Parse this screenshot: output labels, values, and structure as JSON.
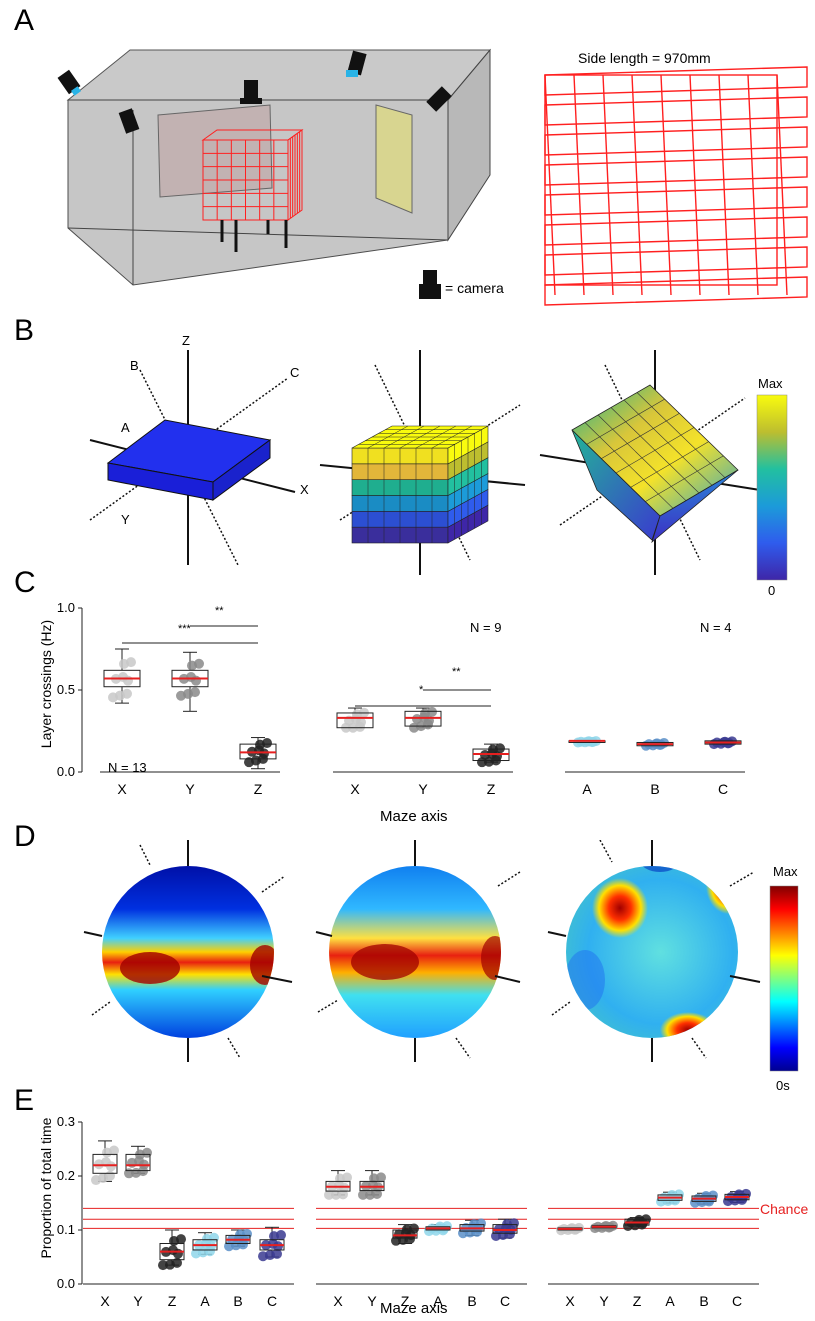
{
  "panels": {
    "a": {
      "letter": "A",
      "side_length_label": "Side length = 970mm",
      "camera_legend": "= camera"
    },
    "b": {
      "letter": "B",
      "axis_labels": {
        "z": "Z",
        "x": "X",
        "y": "Y",
        "a": "A",
        "b": "B",
        "c": "C"
      },
      "colorbar": {
        "max": "Max",
        "min": "0"
      }
    },
    "c": {
      "letter": "C",
      "ylabel": "Layer crossings (Hz)",
      "xlabel": "Maze axis",
      "n_labels": [
        "N = 13",
        "N = 9",
        "N = 4"
      ],
      "sig_labels": [
        "**",
        "***",
        "**",
        "*"
      ]
    },
    "d": {
      "letter": "D",
      "colorbar": {
        "max": "Max",
        "min": "0s"
      }
    },
    "e": {
      "letter": "E",
      "ylabel": "Proportion of total time",
      "xlabel": "Maze axis",
      "chance_label": "Chance"
    }
  },
  "chart_data": [
    {
      "type": "box",
      "panel": "C",
      "ylabel": "Layer crossings (Hz)",
      "xlabel": "Maze axis",
      "ylim": [
        0,
        1.0
      ],
      "yticks": [
        "0.0",
        "0.5",
        "1.0"
      ],
      "groups": [
        {
          "n": "N = 13",
          "categories": [
            "X",
            "Y",
            "Z"
          ],
          "median": [
            0.57,
            0.57,
            0.12
          ],
          "q1": [
            0.52,
            0.52,
            0.08
          ],
          "q3": [
            0.62,
            0.62,
            0.17
          ],
          "whisker_low": [
            0.42,
            0.37,
            0.02
          ],
          "whisker_high": [
            0.75,
            0.73,
            0.21
          ]
        },
        {
          "n": "N = 9",
          "categories": [
            "X",
            "Y",
            "Z"
          ],
          "median": [
            0.33,
            0.33,
            0.11
          ],
          "q1": [
            0.27,
            0.28,
            0.07
          ],
          "q3": [
            0.36,
            0.37,
            0.14
          ],
          "whisker_low": [
            0.27,
            0.27,
            0.06
          ],
          "whisker_high": [
            0.39,
            0.39,
            0.17
          ]
        },
        {
          "n": "N = 4",
          "categories": [
            "A",
            "B",
            "C"
          ],
          "median": [
            0.19,
            0.17,
            0.18
          ],
          "q1": [
            0.18,
            0.16,
            0.17
          ],
          "q3": [
            0.19,
            0.18,
            0.19
          ],
          "whisker_low": [
            0.18,
            0.16,
            0.17
          ],
          "whisker_high": [
            0.19,
            0.18,
            0.19
          ]
        }
      ]
    },
    {
      "type": "box",
      "panel": "E",
      "ylabel": "Proportion of total time",
      "xlabel": "Maze axis",
      "ylim": [
        0,
        0.3
      ],
      "yticks": [
        "0.0",
        "0.1",
        "0.2",
        "0.3"
      ],
      "chance": [
        0.103,
        0.12,
        0.14
      ],
      "groups": [
        {
          "categories": [
            "X",
            "Y",
            "Z",
            "A",
            "B",
            "C"
          ],
          "median": [
            0.22,
            0.22,
            0.06,
            0.072,
            0.082,
            0.072
          ],
          "q1": [
            0.205,
            0.21,
            0.045,
            0.063,
            0.075,
            0.063
          ],
          "q3": [
            0.24,
            0.24,
            0.075,
            0.082,
            0.09,
            0.082
          ],
          "whisker_low": [
            0.19,
            0.205,
            0.035,
            0.055,
            0.07,
            0.05
          ],
          "whisker_high": [
            0.265,
            0.255,
            0.1,
            0.095,
            0.1,
            0.105
          ]
        },
        {
          "categories": [
            "X",
            "Y",
            "Z",
            "A",
            "B",
            "C"
          ],
          "median": [
            0.18,
            0.18,
            0.09,
            0.103,
            0.103,
            0.1
          ],
          "q1": [
            0.172,
            0.173,
            0.085,
            0.1,
            0.098,
            0.094
          ],
          "q3": [
            0.19,
            0.19,
            0.1,
            0.106,
            0.11,
            0.11
          ],
          "whisker_low": [
            0.165,
            0.165,
            0.075,
            0.098,
            0.09,
            0.085
          ],
          "whisker_high": [
            0.21,
            0.21,
            0.11,
            0.11,
            0.118,
            0.12
          ]
        },
        {
          "categories": [
            "X",
            "Y",
            "Z",
            "A",
            "B",
            "C"
          ],
          "median": [
            0.102,
            0.106,
            0.114,
            0.16,
            0.158,
            0.161
          ],
          "q1": [
            0.1,
            0.104,
            0.109,
            0.155,
            0.153,
            0.156
          ],
          "q3": [
            0.104,
            0.108,
            0.12,
            0.165,
            0.163,
            0.166
          ],
          "whisker_low": [
            0.099,
            0.103,
            0.106,
            0.15,
            0.148,
            0.151
          ],
          "whisker_high": [
            0.105,
            0.109,
            0.123,
            0.17,
            0.168,
            0.171
          ]
        }
      ]
    }
  ]
}
